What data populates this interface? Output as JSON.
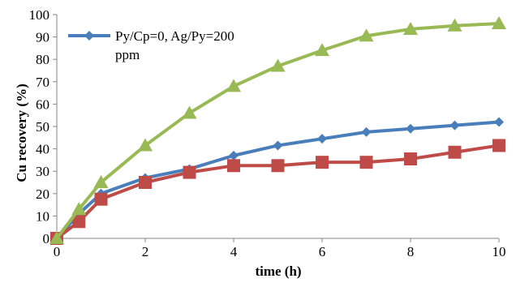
{
  "chart_data": {
    "type": "line",
    "title": "",
    "xlabel": "time (h)",
    "ylabel": "Cu recovery (%)",
    "xlim": [
      0,
      10
    ],
    "ylim": [
      0,
      100
    ],
    "xticks": [
      0,
      2,
      4,
      6,
      8,
      10
    ],
    "yticks": [
      0,
      10,
      20,
      30,
      40,
      50,
      60,
      70,
      80,
      90,
      100
    ],
    "grid": false,
    "legend_position": "top-left",
    "series": [
      {
        "name": "Py/Cp=0, Ag/Py=200 ppm",
        "legend_lines": [
          "Py/Cp=0, Ag/Py=200",
          "ppm"
        ],
        "color": "#4A7EBB",
        "marker": "diamond",
        "x": [
          0,
          0.5,
          1,
          2,
          3,
          4,
          5,
          6,
          7,
          8,
          9,
          10
        ],
        "y": [
          0,
          11,
          20,
          27,
          31,
          37,
          41.5,
          44.5,
          47.5,
          49,
          50.5,
          52
        ]
      },
      {
        "color": "#BE4B48",
        "marker": "square",
        "x": [
          0,
          0.5,
          1,
          2,
          3,
          4,
          5,
          6,
          7,
          8,
          9,
          10
        ],
        "y": [
          0,
          7.5,
          17.5,
          25,
          29.5,
          32.5,
          32.5,
          34,
          34,
          35.5,
          38.5,
          41.5
        ]
      },
      {
        "color": "#98B954",
        "marker": "triangle",
        "x": [
          0,
          0.5,
          1,
          2,
          3,
          4,
          5,
          6,
          7,
          8,
          9,
          10
        ],
        "y": [
          0,
          13,
          25,
          41.5,
          56,
          68,
          77,
          84,
          90.5,
          93.5,
          95,
          96
        ]
      }
    ]
  }
}
